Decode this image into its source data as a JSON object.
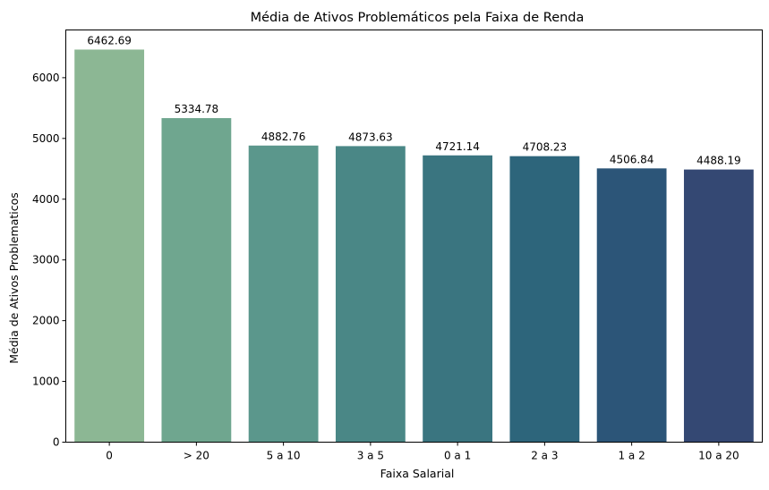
{
  "chart_data": {
    "type": "bar",
    "title": "Média de Ativos Problemáticos pela Faixa de Renda",
    "xlabel": "Faixa Salarial",
    "ylabel": "Média de Ativos Problematicos",
    "categories": [
      "0",
      "> 20",
      "5 a 10",
      "3 a 5",
      "0 a 1",
      "2 a 3",
      "1 a 2",
      "10 a 20"
    ],
    "values": [
      6462.69,
      5334.78,
      4882.76,
      4873.63,
      4721.14,
      4708.23,
      4506.84,
      4488.19
    ],
    "data_labels": [
      "6462.69",
      "5334.78",
      "4882.76",
      "4873.63",
      "4721.14",
      "4708.23",
      "4506.84",
      "4488.19"
    ],
    "colors": [
      "#8cb794",
      "#6fa68f",
      "#5b978c",
      "#4a8786",
      "#3a7580",
      "#2d657b",
      "#2c5578",
      "#344873"
    ],
    "ylim": [
      0,
      6785.8
    ],
    "yticks": [
      0,
      1000,
      2000,
      3000,
      4000,
      5000,
      6000
    ],
    "ytick_labels": [
      "0",
      "1000",
      "2000",
      "3000",
      "4000",
      "5000",
      "6000"
    ],
    "grid": false,
    "legend": "none"
  }
}
